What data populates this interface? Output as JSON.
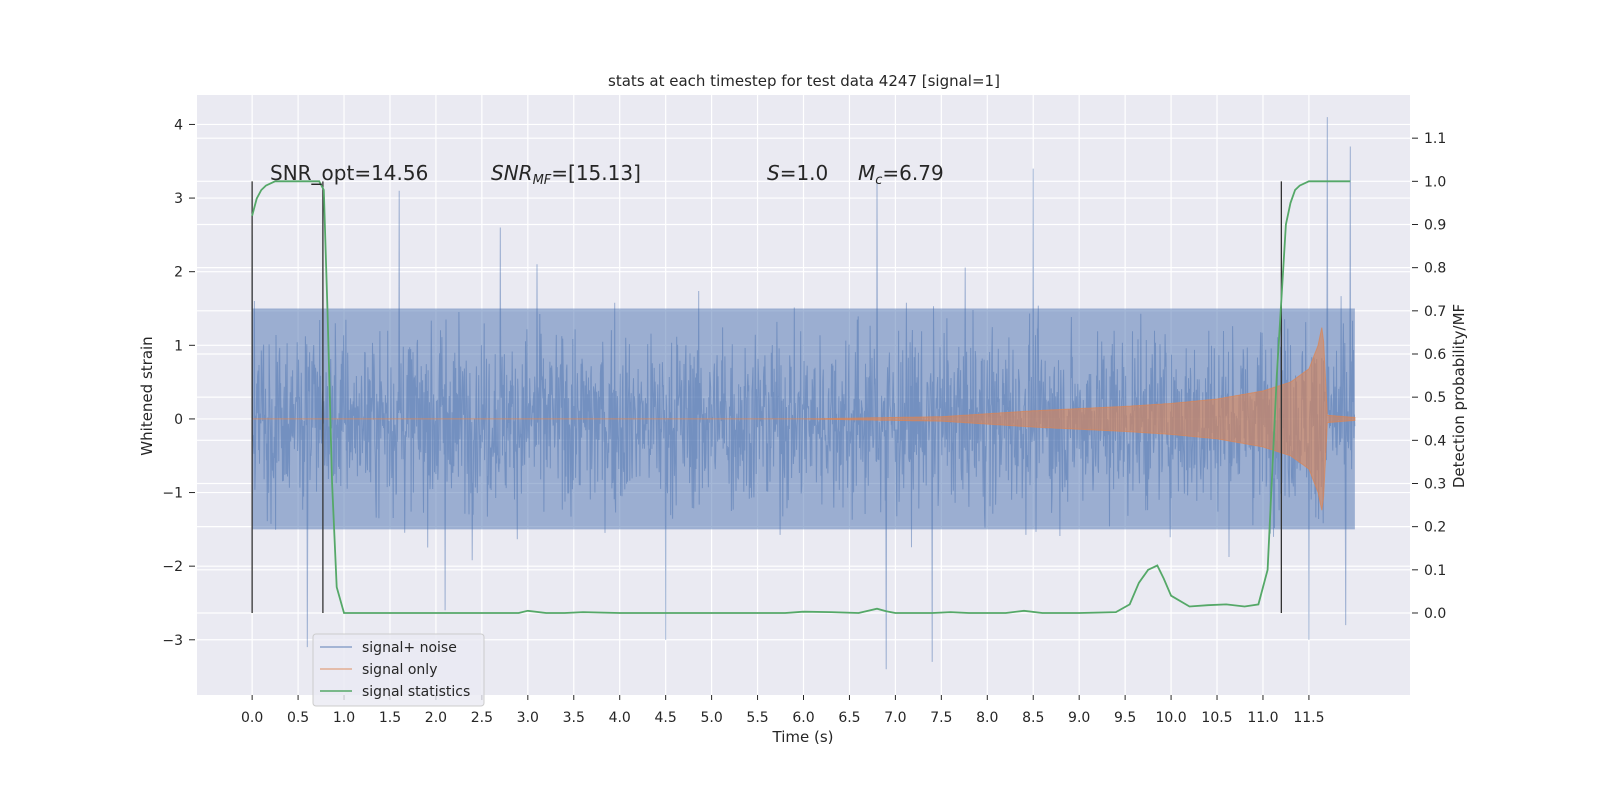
{
  "chart_data": {
    "type": "line",
    "title": "stats at each timestep for test data 4247 [signal=1]",
    "xlabel": "Time (s)",
    "ylabel": "Whitened strain",
    "ylabel_right": "Detection probability/MF",
    "xlim": [
      -0.6,
      12.6
    ],
    "ylim": [
      -3.75,
      4.4
    ],
    "ylim_right": [
      -0.19,
      1.2
    ],
    "x_ticks": [
      0.0,
      0.5,
      1.0,
      1.5,
      2.0,
      2.5,
      3.0,
      3.5,
      4.0,
      4.5,
      5.0,
      5.5,
      6.0,
      6.5,
      7.0,
      7.5,
      8.0,
      8.5,
      9.0,
      9.5,
      10.0,
      10.5,
      11.0,
      11.5
    ],
    "x_tick_labels": [
      "0.0",
      "0.5",
      "1.0",
      "1.5",
      "2.0",
      "2.5",
      "3.0",
      "3.5",
      "4.0",
      "4.5",
      "5.0",
      "5.5",
      "6.0",
      "6.5",
      "7.0",
      "7.5",
      "8.0",
      "8.5",
      "9.0",
      "9.5",
      "10.0",
      "10.5",
      "11.0",
      "11.5"
    ],
    "y_ticks": [
      -3,
      -2,
      -1,
      0,
      1,
      2,
      3,
      4
    ],
    "y_tick_labels": [
      "−3",
      "−2",
      "−1",
      "0",
      "1",
      "2",
      "3",
      "4"
    ],
    "y_ticks_right": [
      0.0,
      0.1,
      0.2,
      0.3,
      0.4,
      0.5,
      0.6,
      0.7,
      0.8,
      0.9,
      1.0,
      1.1
    ],
    "y_tick_labels_right": [
      "0.0",
      "0.1",
      "0.2",
      "0.3",
      "0.4",
      "0.5",
      "0.6",
      "0.7",
      "0.8",
      "0.9",
      "1.0",
      "1.1"
    ],
    "grid": true,
    "legend_position": "bottom-left",
    "annotations": {
      "snr_opt": "SNR_opt=14.56",
      "snr_mf_main": "SNR",
      "snr_mf_sub": "MF",
      "snr_mf_value": "=[15.13]",
      "s_symbol": "S",
      "s_value": "=1.0",
      "mc_symbol": "M",
      "mc_sub": "c",
      "mc_value": "=6.79"
    },
    "series": [
      {
        "name": "signal+ noise",
        "color": "#4c72b0",
        "axis": "left",
        "time_range": [
          0.0,
          12.0
        ],
        "band_core": [
          -1.5,
          1.5
        ],
        "spike_max": [
          [
            0.0,
            2.5
          ],
          [
            1.6,
            3.1
          ],
          [
            2.7,
            2.6
          ],
          [
            3.1,
            2.1
          ],
          [
            6.8,
            3.2
          ],
          [
            8.5,
            3.4
          ],
          [
            11.7,
            4.1
          ],
          [
            11.95,
            3.7
          ]
        ],
        "spike_min": [
          [
            0.6,
            -3.1
          ],
          [
            2.1,
            -2.6
          ],
          [
            4.5,
            -3.0
          ],
          [
            6.9,
            -3.4
          ],
          [
            7.4,
            -3.3
          ],
          [
            11.5,
            -3.0
          ],
          [
            11.9,
            -2.8
          ]
        ]
      },
      {
        "name": "signal only",
        "color": "#dd8452",
        "axis": "left",
        "x": [
          0.0,
          6.0,
          7.5,
          8.0,
          8.5,
          9.0,
          9.5,
          10.0,
          10.5,
          11.0,
          11.3,
          11.5,
          11.6,
          11.65,
          11.7,
          12.0
        ],
        "envelope": [
          0.0,
          0.0,
          0.03,
          0.07,
          0.11,
          0.14,
          0.17,
          0.21,
          0.27,
          0.38,
          0.5,
          0.68,
          1.0,
          1.3,
          0.05,
          0.02
        ]
      },
      {
        "name": "signal statistics",
        "color": "#55a868",
        "axis": "right",
        "x": [
          0.0,
          0.05,
          0.1,
          0.15,
          0.25,
          0.4,
          0.6,
          0.73,
          0.78,
          0.82,
          0.87,
          0.92,
          1.0,
          1.5,
          2.5,
          2.9,
          3.0,
          3.2,
          3.4,
          3.6,
          4.0,
          5.0,
          5.8,
          6.0,
          6.3,
          6.6,
          6.8,
          6.9,
          7.0,
          7.4,
          7.6,
          7.8,
          8.2,
          8.4,
          8.6,
          9.0,
          9.4,
          9.55,
          9.65,
          9.75,
          9.85,
          9.92,
          10.0,
          10.2,
          10.4,
          10.6,
          10.8,
          10.95,
          11.05,
          11.15,
          11.25,
          11.3,
          11.35,
          11.4,
          11.5,
          11.7,
          11.95
        ],
        "y": [
          0.92,
          0.96,
          0.98,
          0.99,
          1.0,
          1.0,
          1.0,
          1.0,
          0.98,
          0.7,
          0.3,
          0.06,
          0.0,
          0.0,
          0.0,
          0.0,
          0.005,
          0.0,
          0.0,
          0.002,
          0.0,
          0.0,
          0.0,
          0.003,
          0.002,
          0.0,
          0.01,
          0.004,
          0.0,
          0.0,
          0.002,
          0.0,
          0.0,
          0.005,
          0.0,
          0.0,
          0.002,
          0.02,
          0.07,
          0.1,
          0.11,
          0.08,
          0.04,
          0.015,
          0.018,
          0.02,
          0.015,
          0.02,
          0.1,
          0.55,
          0.9,
          0.95,
          0.98,
          0.99,
          1.0,
          1.0,
          1.0
        ]
      }
    ],
    "markers": [
      {
        "name": "marker-start-1",
        "x": 0.0,
        "color": "#333333"
      },
      {
        "name": "marker-end-1",
        "x": 0.77,
        "color": "#333333"
      },
      {
        "name": "marker-start-2",
        "x": 11.2,
        "color": "#333333"
      }
    ]
  }
}
